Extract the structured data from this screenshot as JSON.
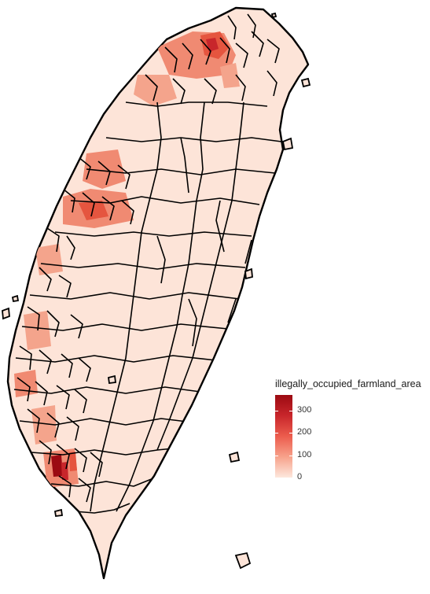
{
  "map": {
    "region_fill_base": "#fde4d8",
    "border_color": "#000000",
    "hotspot_colors": [
      "#f08a72",
      "#f4a48c",
      "#e5553f",
      "#c8262b",
      "#9c0a12"
    ]
  },
  "legend": {
    "title": "illegally_occupied_farmland_area",
    "scale_min": 0,
    "scale_max": 370,
    "gradient": [
      "#9c0a12",
      "#c8262b",
      "#ec5c4d",
      "#f7a28b",
      "#fde8dd"
    ],
    "ticks": [
      {
        "label": "300",
        "value": 300
      },
      {
        "label": "200",
        "value": 200
      },
      {
        "label": "100",
        "value": 100
      },
      {
        "label": "0",
        "value": 0
      }
    ]
  }
}
